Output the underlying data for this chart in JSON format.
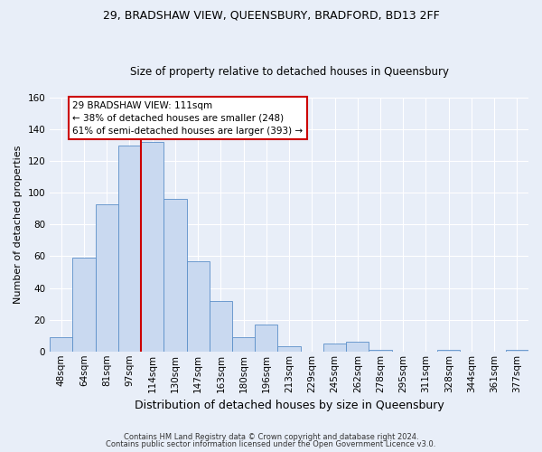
{
  "title1": "29, BRADSHAW VIEW, QUEENSBURY, BRADFORD, BD13 2FF",
  "title2": "Size of property relative to detached houses in Queensbury",
  "xlabel": "Distribution of detached houses by size in Queensbury",
  "ylabel": "Number of detached properties",
  "bin_labels": [
    "48sqm",
    "64sqm",
    "81sqm",
    "97sqm",
    "114sqm",
    "130sqm",
    "147sqm",
    "163sqm",
    "180sqm",
    "196sqm",
    "213sqm",
    "229sqm",
    "245sqm",
    "262sqm",
    "278sqm",
    "295sqm",
    "311sqm",
    "328sqm",
    "344sqm",
    "361sqm",
    "377sqm"
  ],
  "bar_values": [
    9,
    59,
    93,
    130,
    132,
    96,
    57,
    32,
    9,
    17,
    3,
    0,
    5,
    6,
    1,
    0,
    0,
    1,
    0,
    0,
    1
  ],
  "bar_color": "#c9d9f0",
  "bar_edge_color": "#5b8fc9",
  "vline_x_index": 4,
  "vline_color": "#cc0000",
  "annotation_text": "29 BRADSHAW VIEW: 111sqm\n← 38% of detached houses are smaller (248)\n61% of semi-detached houses are larger (393) →",
  "annotation_box_color": "#ffffff",
  "annotation_box_edge": "#cc0000",
  "ylim": [
    0,
    160
  ],
  "yticks": [
    0,
    20,
    40,
    60,
    80,
    100,
    120,
    140,
    160
  ],
  "footer1": "Contains HM Land Registry data © Crown copyright and database right 2024.",
  "footer2": "Contains public sector information licensed under the Open Government Licence v3.0.",
  "background_color": "#e8eef8",
  "plot_background": "#e8eef8",
  "title_fontsize": 9,
  "subtitle_fontsize": 8.5,
  "xlabel_fontsize": 9,
  "ylabel_fontsize": 8,
  "tick_fontsize": 7.5
}
